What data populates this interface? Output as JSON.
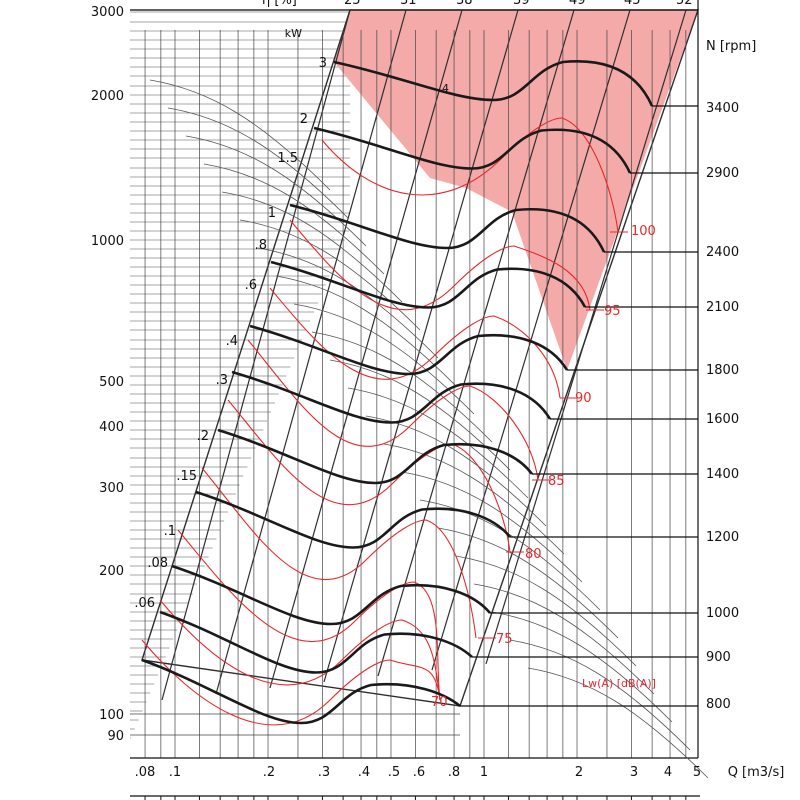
{
  "chart_data": {
    "type": "line",
    "title": "",
    "top_header": {
      "eta_label": "η [%]",
      "eta_ticks": [
        "25",
        "31",
        "38",
        "39",
        "49",
        "45",
        "52"
      ]
    },
    "power_axis_label": "kW",
    "power_ticks": [
      "3",
      "2",
      "1.5",
      "1",
      ".8",
      ".6",
      ".4",
      ".3",
      ".2",
      ".15",
      ".1",
      ".08",
      ".06"
    ],
    "y_axis": {
      "label": "",
      "scale": "log",
      "ylim": [
        80,
        3000
      ],
      "ticks": [
        "3000",
        "2000",
        "1000",
        "500",
        "400",
        "300",
        "200",
        "100",
        "90"
      ]
    },
    "x_axis": {
      "label": "Q [m3/s]",
      "scale": "log",
      "xlim": [
        0.08,
        5
      ],
      "ticks": [
        ".08",
        ".1",
        ".2",
        ".3",
        ".4",
        ".5",
        ".6",
        ".8",
        "1",
        "2",
        "3",
        "4",
        "5"
      ]
    },
    "speed_axis": {
      "label": "N [rpm]",
      "values": [
        3400,
        2900,
        2400,
        2100,
        1800,
        1600,
        1400,
        1200,
        1000,
        900,
        800
      ]
    },
    "sound_power": {
      "label": "Lw(A)  [dB(A)]",
      "values": [
        "100",
        "95",
        "90",
        "85",
        "80",
        "75",
        "70"
      ]
    },
    "marker_4": "4",
    "grid": true,
    "legend": "none",
    "colors": {
      "speed_curve": "#1a1a1a",
      "sound_curve": "#e8282c",
      "grid": "#2e2e2e",
      "restricted_zone": "#f4aaa8"
    }
  }
}
